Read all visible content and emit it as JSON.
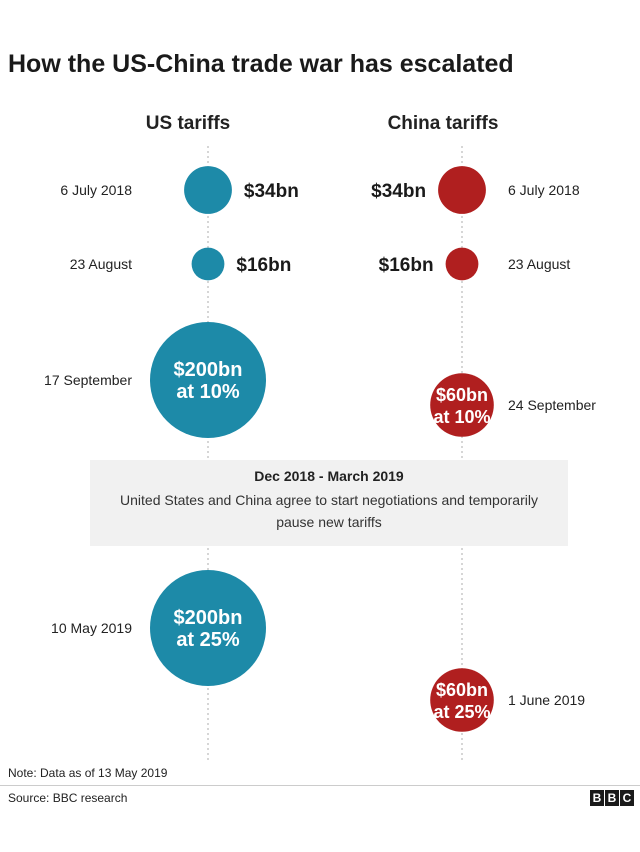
{
  "title": "How the US-China trade war has escalated",
  "columns": {
    "us": "US tariffs",
    "china": "China tariffs"
  },
  "colors": {
    "us": "#1d8aa8",
    "china": "#b01f1f",
    "axis": "#bbbbbb"
  },
  "chart_data": {
    "type": "proportional-circle timeline",
    "title": "How the US-China trade war has escalated",
    "series": [
      {
        "name": "US tariffs",
        "events": [
          {
            "date": "6 July 2018",
            "value_bn": 34,
            "label": "$34bn",
            "rate": ""
          },
          {
            "date": "23 August",
            "value_bn": 16,
            "label": "$16bn",
            "rate": ""
          },
          {
            "date": "17 September",
            "value_bn": 200,
            "label": "$200bn",
            "rate": "at 10%"
          },
          {
            "date": "10 May 2019",
            "value_bn": 200,
            "label": "$200bn",
            "rate": "at 25%"
          }
        ]
      },
      {
        "name": "China tariffs",
        "events": [
          {
            "date": "6 July 2018",
            "value_bn": 34,
            "label": "$34bn",
            "rate": ""
          },
          {
            "date": "23 August",
            "value_bn": 16,
            "label": "$16bn",
            "rate": ""
          },
          {
            "date": "24 September",
            "value_bn": 60,
            "label": "$60bn",
            "rate": "at 10%"
          },
          {
            "date": "1 June 2019",
            "value_bn": 60,
            "label": "$60bn",
            "rate": "at 25%"
          }
        ]
      }
    ],
    "pause": {
      "title": "Dec 2018 - March 2019",
      "text": "United States and China agree to start negotiations and temporarily pause new tariffs"
    }
  },
  "note": "Note: Data as of 13 May 2019",
  "source": "Source: BBC research",
  "logo": [
    "B",
    "B",
    "C"
  ]
}
